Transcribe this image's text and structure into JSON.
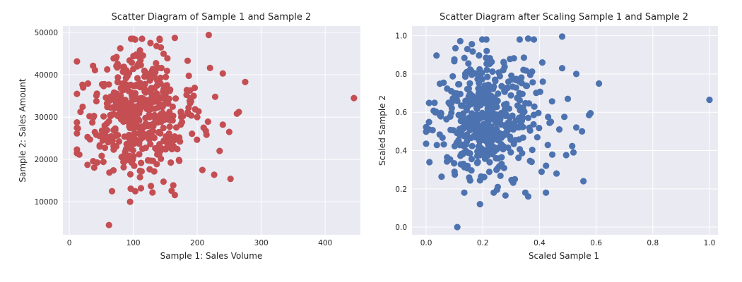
{
  "chart_data": [
    {
      "type": "scatter",
      "title": "Scatter Diagram of Sample 1 and Sample 2",
      "xlabel": "Sample 1: Sales Volume",
      "ylabel": "Sample 2: Sales Amount",
      "xlim": [
        -10,
        455
      ],
      "ylim": [
        2200,
        51500
      ],
      "xticks": [
        0,
        100,
        200,
        300,
        400
      ],
      "yticks": [
        10000,
        20000,
        30000,
        40000,
        50000
      ],
      "xtick_labels": [
        "0",
        "100",
        "200",
        "300",
        "400"
      ],
      "ytick_labels": [
        "10000",
        "20000",
        "30000",
        "40000",
        "50000"
      ],
      "grid": true,
      "color": "#c44e52",
      "outliers": [
        {
          "x": 445,
          "y": 34500
        },
        {
          "x": 62,
          "y": 4500
        },
        {
          "x": 95,
          "y": 10000
        },
        {
          "x": 218,
          "y": 49400
        },
        {
          "x": 275,
          "y": 38300
        },
        {
          "x": 252,
          "y": 15400
        },
        {
          "x": 265,
          "y": 31200
        },
        {
          "x": 262,
          "y": 30800
        },
        {
          "x": 240,
          "y": 40300
        },
        {
          "x": 165,
          "y": 48700
        },
        {
          "x": 220,
          "y": 41600
        },
        {
          "x": 240,
          "y": 28200
        },
        {
          "x": 235,
          "y": 22000
        },
        {
          "x": 208,
          "y": 17500
        },
        {
          "x": 185,
          "y": 43300
        },
        {
          "x": 165,
          "y": 11600
        },
        {
          "x": 160,
          "y": 12600
        },
        {
          "x": 112,
          "y": 13200
        },
        {
          "x": 130,
          "y": 12200
        },
        {
          "x": 228,
          "y": 34800
        },
        {
          "x": 250,
          "y": 26500
        },
        {
          "x": 200,
          "y": 30000
        },
        {
          "x": 210,
          "y": 27500
        }
      ],
      "cluster": {
        "n": 480,
        "x_center": 105,
        "x_spread": 42,
        "x_range": [
          12,
          235
        ],
        "y_center": 30500,
        "y_spread": 7400,
        "y_range": [
          12500,
          48500
        ]
      }
    },
    {
      "type": "scatter",
      "title": "Scatter Diagram after Scaling Sample 1 and Sample 2",
      "xlabel": "Scaled Sample 1",
      "ylabel": "Scaled Sample 2",
      "xlim": [
        -0.05,
        1.03
      ],
      "ylim": [
        -0.04,
        1.05
      ],
      "xticks": [
        0.0,
        0.2,
        0.4,
        0.6,
        0.8,
        1.0
      ],
      "yticks": [
        0.0,
        0.2,
        0.4,
        0.6,
        0.8,
        1.0
      ],
      "xtick_labels": [
        "0.0",
        "0.2",
        "0.4",
        "0.6",
        "0.8",
        "1.0"
      ],
      "ytick_labels": [
        "0.0",
        "0.2",
        "0.4",
        "0.6",
        "0.8",
        "1.0"
      ],
      "grid": true,
      "color": "#4c72b0",
      "outliers": [
        {
          "x": 1.0,
          "y": 0.665
        },
        {
          "x": 0.11,
          "y": 0.0
        },
        {
          "x": 0.19,
          "y": 0.12
        },
        {
          "x": 0.48,
          "y": 0.995
        },
        {
          "x": 0.61,
          "y": 0.75
        },
        {
          "x": 0.555,
          "y": 0.24
        },
        {
          "x": 0.58,
          "y": 0.595
        },
        {
          "x": 0.575,
          "y": 0.585
        },
        {
          "x": 0.53,
          "y": 0.8
        },
        {
          "x": 0.36,
          "y": 0.985
        },
        {
          "x": 0.48,
          "y": 0.83
        },
        {
          "x": 0.53,
          "y": 0.52
        },
        {
          "x": 0.52,
          "y": 0.39
        },
        {
          "x": 0.46,
          "y": 0.28
        },
        {
          "x": 0.41,
          "y": 0.86
        },
        {
          "x": 0.36,
          "y": 0.16
        },
        {
          "x": 0.35,
          "y": 0.18
        },
        {
          "x": 0.25,
          "y": 0.195
        },
        {
          "x": 0.28,
          "y": 0.165
        },
        {
          "x": 0.5,
          "y": 0.67
        },
        {
          "x": 0.55,
          "y": 0.5
        },
        {
          "x": 0.44,
          "y": 0.55
        },
        {
          "x": 0.47,
          "y": 0.51
        }
      ],
      "cluster": {
        "n": 480,
        "x_center": 0.21,
        "x_spread": 0.095,
        "x_range": [
          0.0,
          0.52
        ],
        "y_center": 0.57,
        "y_spread": 0.155,
        "y_range": [
          0.18,
          0.98
        ]
      }
    }
  ]
}
